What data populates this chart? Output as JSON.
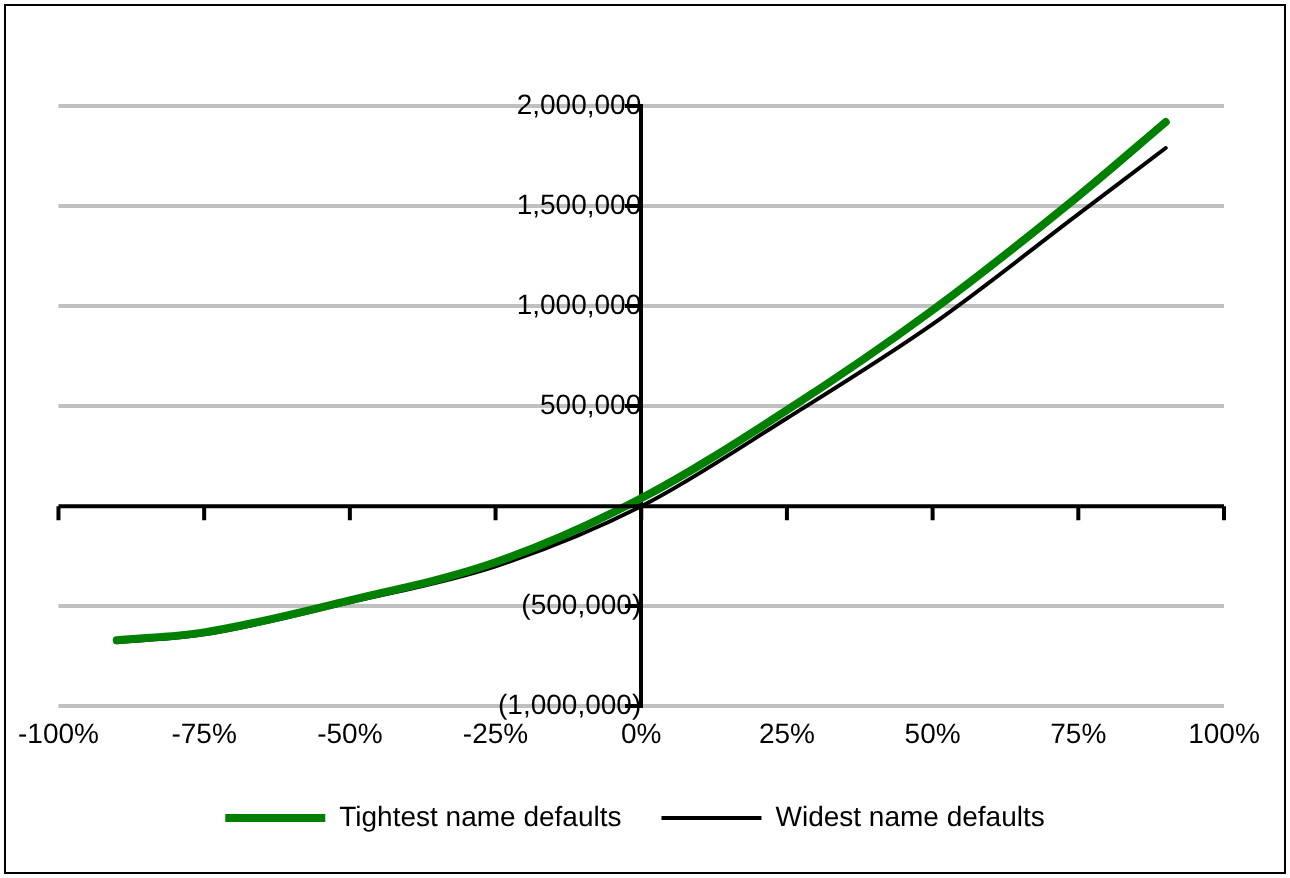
{
  "chart_data": {
    "type": "line",
    "x": [
      -90,
      -75,
      -50,
      -25,
      0,
      25,
      50,
      75,
      90
    ],
    "series": [
      {
        "name": "Tightest name defaults",
        "color": "#008000",
        "values": [
          -670000,
          -630000,
          -470000,
          -280000,
          40000,
          480000,
          980000,
          1550000,
          1920000
        ]
      },
      {
        "name": "Widest name defaults",
        "color": "#000000",
        "values": [
          -680000,
          -640000,
          -480000,
          -300000,
          0,
          440000,
          910000,
          1460000,
          1790000
        ]
      }
    ],
    "xlim": [
      -100,
      100
    ],
    "xticks": [
      {
        "value": -100,
        "label": "-100%"
      },
      {
        "value": -75,
        "label": "-75%"
      },
      {
        "value": -50,
        "label": "-50%"
      },
      {
        "value": -25,
        "label": "-25%"
      },
      {
        "value": 0,
        "label": "0%"
      },
      {
        "value": 25,
        "label": "25%"
      },
      {
        "value": 50,
        "label": "50%"
      },
      {
        "value": 75,
        "label": "75%"
      },
      {
        "value": 100,
        "label": "100%"
      }
    ],
    "ylim": [
      -1000000,
      2000000
    ],
    "yticks": [
      {
        "value": -1000000,
        "label": "(1,000,000)"
      },
      {
        "value": -500000,
        "label": "(500,000)"
      },
      {
        "value": 0,
        "label": null
      },
      {
        "value": 500000,
        "label": "500,000"
      },
      {
        "value": 1000000,
        "label": "1,000,000"
      },
      {
        "value": 1500000,
        "label": "1,500,000"
      },
      {
        "value": 2000000,
        "label": "2,000,000"
      }
    ],
    "grid": "y",
    "legend": "bottom",
    "marker": "none",
    "line_style": "solid"
  }
}
